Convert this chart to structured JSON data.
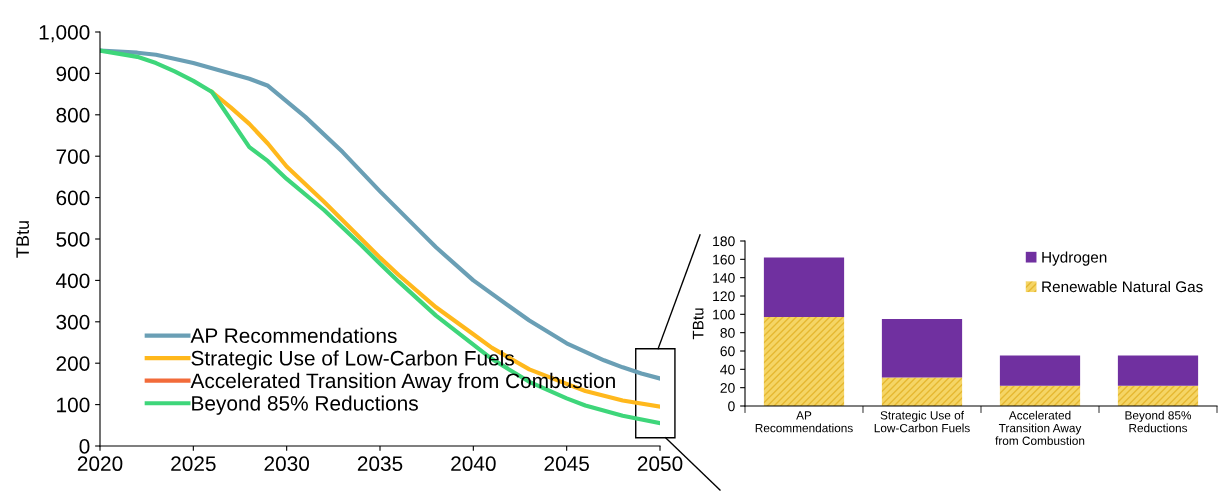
{
  "chart_data": [
    {
      "type": "line",
      "ylabel": "TBtu",
      "xlim": [
        2020,
        2050
      ],
      "xticks": [
        2020,
        2025,
        2030,
        2035,
        2040,
        2045,
        2050
      ],
      "ylim": [
        0,
        1000
      ],
      "yticks": [
        0,
        100,
        200,
        300,
        400,
        500,
        600,
        700,
        800,
        900,
        {
          "value": 1000,
          "label": "1,000"
        }
      ],
      "legend": "bottom left",
      "grid": false,
      "marker": "none",
      "line_style": "solid",
      "series": [
        {
          "name": "AP Recommendations",
          "color": "#6a9fb5",
          "x": [
            2020,
            2022,
            2023,
            2025,
            2027,
            2028,
            2029,
            2031,
            2033,
            2035,
            2037,
            2038,
            2040,
            2042,
            2043,
            2045,
            2047,
            2048,
            2049,
            2050
          ],
          "values": [
            955,
            950,
            945,
            925,
            900,
            887,
            870,
            795,
            710,
            615,
            525,
            480,
            400,
            335,
            303,
            248,
            207,
            190,
            175,
            163
          ]
        },
        {
          "name": "Strategic Use of Low-Carbon Fuels",
          "color": "#ffb81c",
          "x": [
            2026,
            2027,
            2028,
            2029,
            2030,
            2032,
            2034,
            2035,
            2036,
            2038,
            2040,
            2041,
            2043,
            2045,
            2046,
            2048,
            2050
          ],
          "values": [
            855,
            818,
            778,
            730,
            675,
            590,
            500,
            455,
            413,
            335,
            270,
            237,
            185,
            150,
            133,
            110,
            95
          ]
        },
        {
          "name": "Accelerated Transition Away from Combustion",
          "color": "#f26b3a"
        },
        {
          "name": "Beyond 85% Reductions",
          "color": "#3ed67a",
          "x": [
            2020,
            2022,
            2023,
            2024,
            2025,
            2026,
            2028,
            2029,
            2030,
            2032,
            2034,
            2035,
            2036,
            2038,
            2040,
            2041,
            2043,
            2045,
            2046,
            2048,
            2050
          ],
          "values": [
            955,
            940,
            925,
            905,
            882,
            855,
            722,
            688,
            645,
            570,
            485,
            440,
            397,
            315,
            245,
            210,
            155,
            115,
            98,
            73,
            55
          ]
        }
      ]
    },
    {
      "type": "bar",
      "stacked": true,
      "ylabel": "TBtu",
      "ylim": [
        0,
        180
      ],
      "yticks": [
        0,
        20,
        40,
        60,
        80,
        100,
        120,
        140,
        160,
        180
      ],
      "legend": "top right",
      "grid": false,
      "categories": [
        "AP\nRecommendations",
        "Strategic Use of\nLow-Carbon Fuels",
        "Accelerated\nTransition Away\nfrom Combustion",
        "Beyond 85%\nReductions"
      ],
      "series": [
        {
          "name": "Renewable Natural Gas",
          "color": "#f5d565",
          "values": [
            97,
            31,
            22,
            22
          ]
        },
        {
          "name": "Hydrogen",
          "color": "#7030a0",
          "values": [
            65,
            64,
            33,
            33
          ]
        }
      ]
    }
  ]
}
